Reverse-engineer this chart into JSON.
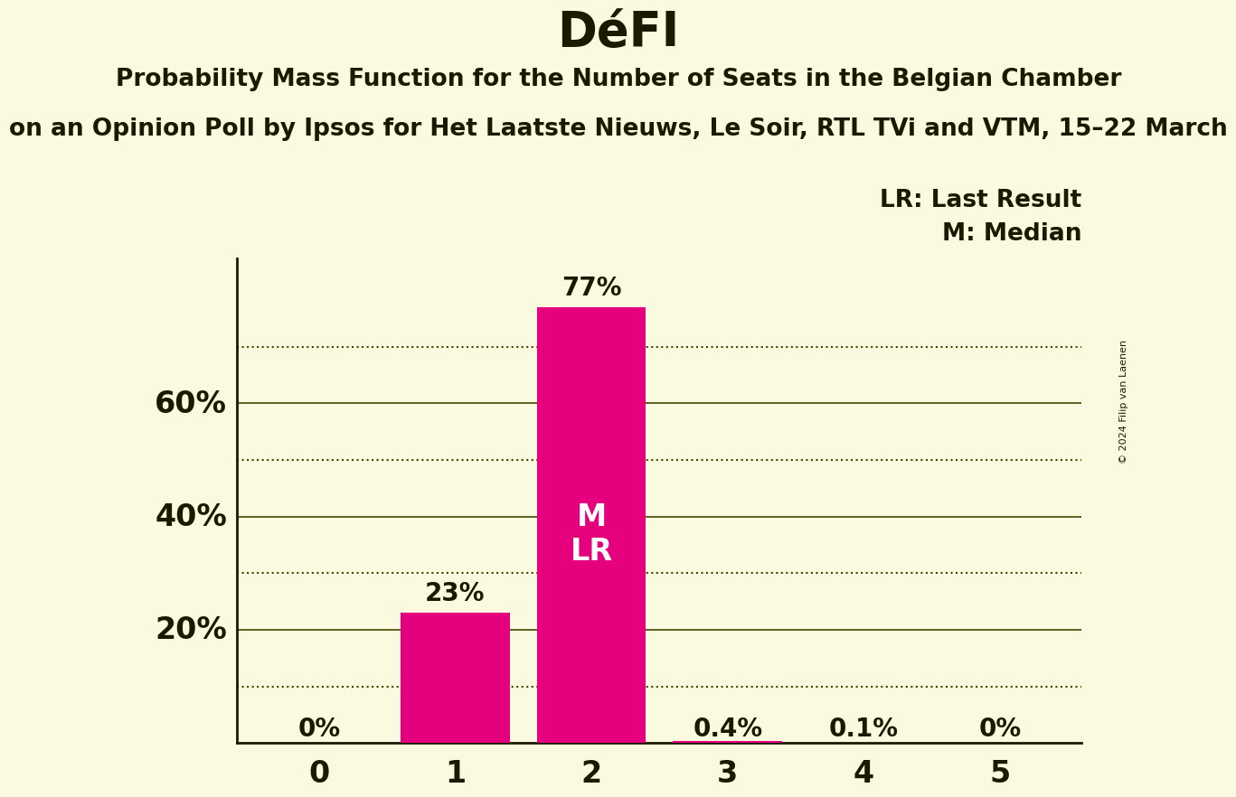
{
  "title": "DéFI",
  "subtitle1": "Probability Mass Function for the Number of Seats in the Belgian Chamber",
  "subtitle2": "on an Opinion Poll by Ipsos for Het Laatste Nieuws, Le Soir, RTL TVi and VTM, 15–22 March",
  "copyright": "© 2024 Filip van Laenen",
  "categories": [
    0,
    1,
    2,
    3,
    4,
    5
  ],
  "values": [
    0.0,
    0.23,
    0.77,
    0.004,
    0.001,
    0.0
  ],
  "bar_color": "#E5007E",
  "background_color": "#FAFAE0",
  "text_color": "#1a1a00",
  "ylim": [
    0,
    0.855
  ],
  "bar_labels": [
    "0%",
    "23%",
    "77%",
    "0.4%",
    "0.1%",
    "0%"
  ],
  "median_bar": 2,
  "legend_lr": "LR: Last Result",
  "legend_m": "M: Median",
  "grid_color": "#444400",
  "dotted_yticks": [
    0.1,
    0.3,
    0.5,
    0.7
  ],
  "solid_yticks": [
    0.2,
    0.4,
    0.6
  ],
  "ytick_labels": {
    "0.2": "20%",
    "0.4": "40%",
    "0.6": "60%"
  }
}
